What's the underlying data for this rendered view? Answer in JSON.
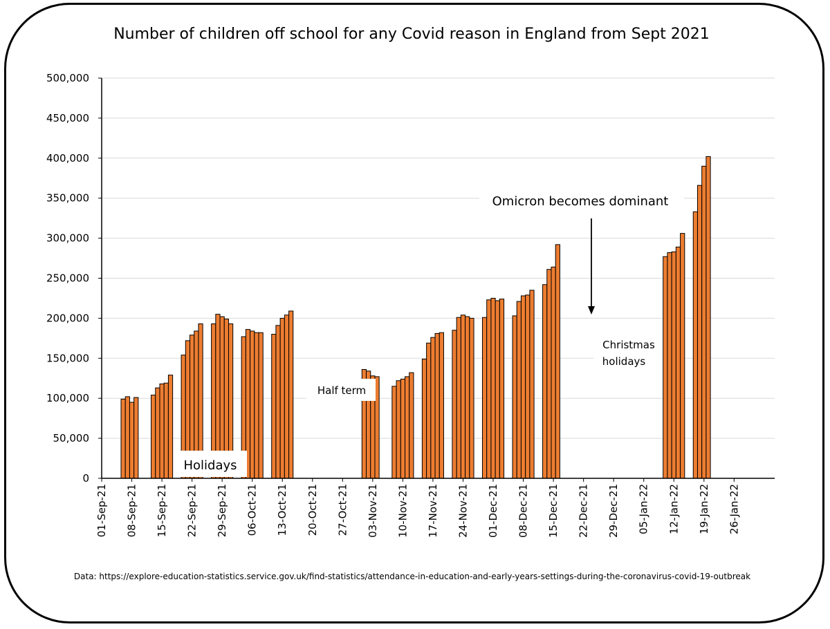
{
  "chart_data": {
    "type": "bar",
    "title": "Number of children off school for any Covid reason in England from Sept 2021",
    "xlabel": "",
    "ylabel": "",
    "ylim": [
      0,
      500000
    ],
    "grid": true,
    "y_ticks": [
      "0",
      "50,000",
      "100,000",
      "150,000",
      "200,000",
      "250,000",
      "300,000",
      "350,000",
      "400,000",
      "450,000",
      "500,000"
    ],
    "x_ticks": [
      "01-Sep-21",
      "08-Sep-21",
      "15-Sep-21",
      "22-Sep-21",
      "29-Sep-21",
      "06-Oct-21",
      "13-Oct-21",
      "20-Oct-21",
      "27-Oct-21",
      "03-Nov-21",
      "10-Nov-21",
      "17-Nov-21",
      "24-Nov-21",
      "01-Dec-21",
      "08-Dec-21",
      "15-Dec-21",
      "22-Dec-21",
      "29-Dec-21",
      "05-Jan-22",
      "12-Jan-22",
      "19-Jan-22",
      "26-Jan-22"
    ],
    "bar_color": "#ED7D31",
    "points": [
      {
        "date": "06-Sep-21",
        "value": 99000
      },
      {
        "date": "07-Sep-21",
        "value": 102000
      },
      {
        "date": "08-Sep-21",
        "value": 95000
      },
      {
        "date": "09-Sep-21",
        "value": 101000
      },
      {
        "date": "13-Sep-21",
        "value": 104000
      },
      {
        "date": "14-Sep-21",
        "value": 113000
      },
      {
        "date": "15-Sep-21",
        "value": 118000
      },
      {
        "date": "16-Sep-21",
        "value": 119000
      },
      {
        "date": "17-Sep-21",
        "value": 129000
      },
      {
        "date": "20-Sep-21",
        "value": 154000
      },
      {
        "date": "21-Sep-21",
        "value": 172000
      },
      {
        "date": "22-Sep-21",
        "value": 179000
      },
      {
        "date": "23-Sep-21",
        "value": 184000
      },
      {
        "date": "24-Sep-21",
        "value": 193000
      },
      {
        "date": "27-Sep-21",
        "value": 193000
      },
      {
        "date": "28-Sep-21",
        "value": 205000
      },
      {
        "date": "29-Sep-21",
        "value": 202000
      },
      {
        "date": "30-Sep-21",
        "value": 199000
      },
      {
        "date": "01-Oct-21",
        "value": 193000
      },
      {
        "date": "04-Oct-21",
        "value": 177000
      },
      {
        "date": "05-Oct-21",
        "value": 186000
      },
      {
        "date": "06-Oct-21",
        "value": 184000
      },
      {
        "date": "07-Oct-21",
        "value": 182000
      },
      {
        "date": "08-Oct-21",
        "value": 182000
      },
      {
        "date": "11-Oct-21",
        "value": 180000
      },
      {
        "date": "12-Oct-21",
        "value": 191000
      },
      {
        "date": "13-Oct-21",
        "value": 200000
      },
      {
        "date": "14-Oct-21",
        "value": 204000
      },
      {
        "date": "15-Oct-21",
        "value": 209000
      },
      {
        "date": "01-Nov-21",
        "value": 136000
      },
      {
        "date": "02-Nov-21",
        "value": 134000
      },
      {
        "date": "03-Nov-21",
        "value": 128000
      },
      {
        "date": "04-Nov-21",
        "value": 127000
      },
      {
        "date": "08-Nov-21",
        "value": 115000
      },
      {
        "date": "09-Nov-21",
        "value": 122000
      },
      {
        "date": "10-Nov-21",
        "value": 124000
      },
      {
        "date": "11-Nov-21",
        "value": 127000
      },
      {
        "date": "12-Nov-21",
        "value": 132000
      },
      {
        "date": "15-Nov-21",
        "value": 149000
      },
      {
        "date": "16-Nov-21",
        "value": 169000
      },
      {
        "date": "17-Nov-21",
        "value": 176000
      },
      {
        "date": "18-Nov-21",
        "value": 181000
      },
      {
        "date": "19-Nov-21",
        "value": 182000
      },
      {
        "date": "22-Nov-21",
        "value": 185000
      },
      {
        "date": "23-Nov-21",
        "value": 201000
      },
      {
        "date": "24-Nov-21",
        "value": 204000
      },
      {
        "date": "25-Nov-21",
        "value": 202000
      },
      {
        "date": "26-Nov-21",
        "value": 200000
      },
      {
        "date": "29-Nov-21",
        "value": 201000
      },
      {
        "date": "30-Nov-21",
        "value": 223000
      },
      {
        "date": "01-Dec-21",
        "value": 225000
      },
      {
        "date": "02-Dec-21",
        "value": 222000
      },
      {
        "date": "03-Dec-21",
        "value": 224000
      },
      {
        "date": "06-Dec-21",
        "value": 203000
      },
      {
        "date": "07-Dec-21",
        "value": 221000
      },
      {
        "date": "08-Dec-21",
        "value": 228000
      },
      {
        "date": "09-Dec-21",
        "value": 229000
      },
      {
        "date": "10-Dec-21",
        "value": 235000
      },
      {
        "date": "13-Dec-21",
        "value": 242000
      },
      {
        "date": "14-Dec-21",
        "value": 261000
      },
      {
        "date": "15-Dec-21",
        "value": 264000
      },
      {
        "date": "16-Dec-21",
        "value": 292000
      },
      {
        "date": "10-Jan-22",
        "value": 277000
      },
      {
        "date": "11-Jan-22",
        "value": 282000
      },
      {
        "date": "12-Jan-22",
        "value": 283000
      },
      {
        "date": "13-Jan-22",
        "value": 289000
      },
      {
        "date": "14-Jan-22",
        "value": 306000
      },
      {
        "date": "17-Jan-22",
        "value": 333000
      },
      {
        "date": "18-Jan-22",
        "value": 366000
      },
      {
        "date": "19-Jan-22",
        "value": 390000
      },
      {
        "date": "20-Jan-22",
        "value": 402000
      }
    ],
    "annotations": {
      "holidays": "Holidays",
      "half_term": "Half term",
      "omicron": "Omicron becomes dominant",
      "christmas_line1": "Christmas",
      "christmas_line2": "holidays"
    },
    "source": "Data: https://explore-education-statistics.service.gov.uk/find-statistics/attendance-in-education-and-early-years-settings-during-the-coronavirus-covid-19-outbreak"
  }
}
